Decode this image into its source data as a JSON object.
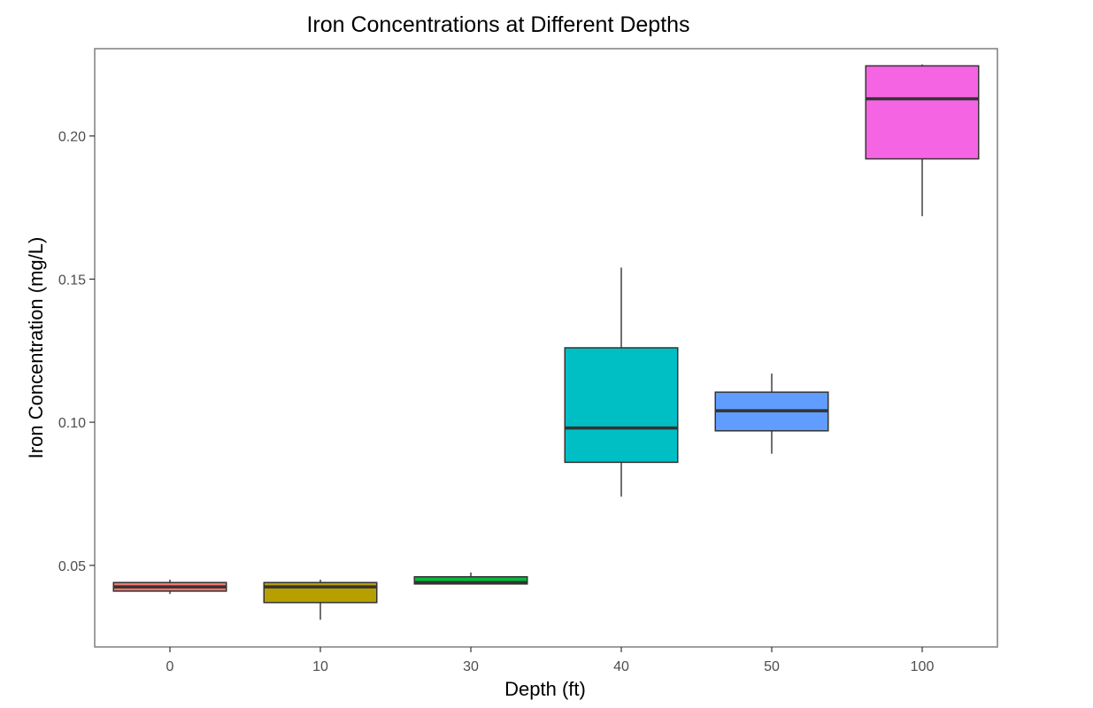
{
  "chart_data": {
    "type": "box",
    "title": "Iron Concentrations at Different Depths",
    "xlabel": "Depth (ft)",
    "ylabel": "Iron Concentration (mg/L)",
    "ylim": [
      0.0215,
      0.2305
    ],
    "yticks": [
      0.05,
      0.1,
      0.15,
      0.2
    ],
    "ytick_labels": [
      "0.05",
      "0.10",
      "0.15",
      "0.20"
    ],
    "grid": false,
    "legend": "none",
    "categories": [
      "0",
      "10",
      "30",
      "40",
      "50",
      "100"
    ],
    "boxes": [
      {
        "category": "0",
        "whisker_low": 0.04,
        "q1": 0.041,
        "median": 0.0425,
        "q3": 0.044,
        "whisker_high": 0.045,
        "color": "#F8766D"
      },
      {
        "category": "10",
        "whisker_low": 0.031,
        "q1": 0.037,
        "median": 0.0425,
        "q3": 0.044,
        "whisker_high": 0.045,
        "color": "#B79F00"
      },
      {
        "category": "30",
        "whisker_low": 0.0435,
        "q1": 0.0435,
        "median": 0.044,
        "q3": 0.046,
        "whisker_high": 0.0475,
        "color": "#00BA38"
      },
      {
        "category": "40",
        "whisker_low": 0.074,
        "q1": 0.086,
        "median": 0.098,
        "q3": 0.126,
        "whisker_high": 0.154,
        "color": "#00BFC4"
      },
      {
        "category": "50",
        "whisker_low": 0.089,
        "q1": 0.097,
        "median": 0.104,
        "q3": 0.1105,
        "whisker_high": 0.117,
        "color": "#619CFF"
      },
      {
        "category": "100",
        "whisker_low": 0.172,
        "q1": 0.192,
        "median": 0.213,
        "q3": 0.2245,
        "whisker_high": 0.225,
        "color": "#F564E3"
      }
    ]
  }
}
